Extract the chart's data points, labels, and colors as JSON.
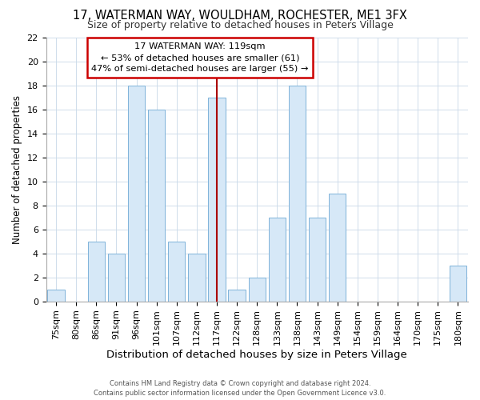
{
  "title": "17, WATERMAN WAY, WOULDHAM, ROCHESTER, ME1 3FX",
  "subtitle": "Size of property relative to detached houses in Peters Village",
  "xlabel": "Distribution of detached houses by size in Peters Village",
  "ylabel": "Number of detached properties",
  "footer1": "Contains HM Land Registry data © Crown copyright and database right 2024.",
  "footer2": "Contains public sector information licensed under the Open Government Licence v3.0.",
  "annotation_line1": "17 WATERMAN WAY: 119sqm",
  "annotation_line2": "← 53% of detached houses are smaller (61)",
  "annotation_line3": "47% of semi-detached houses are larger (55) →",
  "bar_color": "#d6e8f7",
  "bar_edge_color": "#7fb3d9",
  "vline_color": "#aa0000",
  "annotation_box_edge": "#cc0000",
  "annotation_box_face": "#ffffff",
  "categories": [
    "75sqm",
    "80sqm",
    "86sqm",
    "91sqm",
    "96sqm",
    "101sqm",
    "107sqm",
    "112sqm",
    "117sqm",
    "122sqm",
    "128sqm",
    "133sqm",
    "138sqm",
    "143sqm",
    "149sqm",
    "154sqm",
    "159sqm",
    "164sqm",
    "170sqm",
    "175sqm",
    "180sqm"
  ],
  "values": [
    1,
    0,
    5,
    4,
    18,
    16,
    5,
    4,
    17,
    1,
    2,
    7,
    18,
    7,
    9,
    0,
    0,
    0,
    0,
    0,
    3
  ],
  "ylim": [
    0,
    22
  ],
  "yticks": [
    0,
    2,
    4,
    6,
    8,
    10,
    12,
    14,
    16,
    18,
    20,
    22
  ],
  "vline_x_index": 8,
  "grid_color": "#c8d8e8",
  "background_color": "#ffffff",
  "title_fontsize": 10.5,
  "subtitle_fontsize": 9,
  "tick_fontsize": 8,
  "ylabel_fontsize": 8.5,
  "xlabel_fontsize": 9.5
}
